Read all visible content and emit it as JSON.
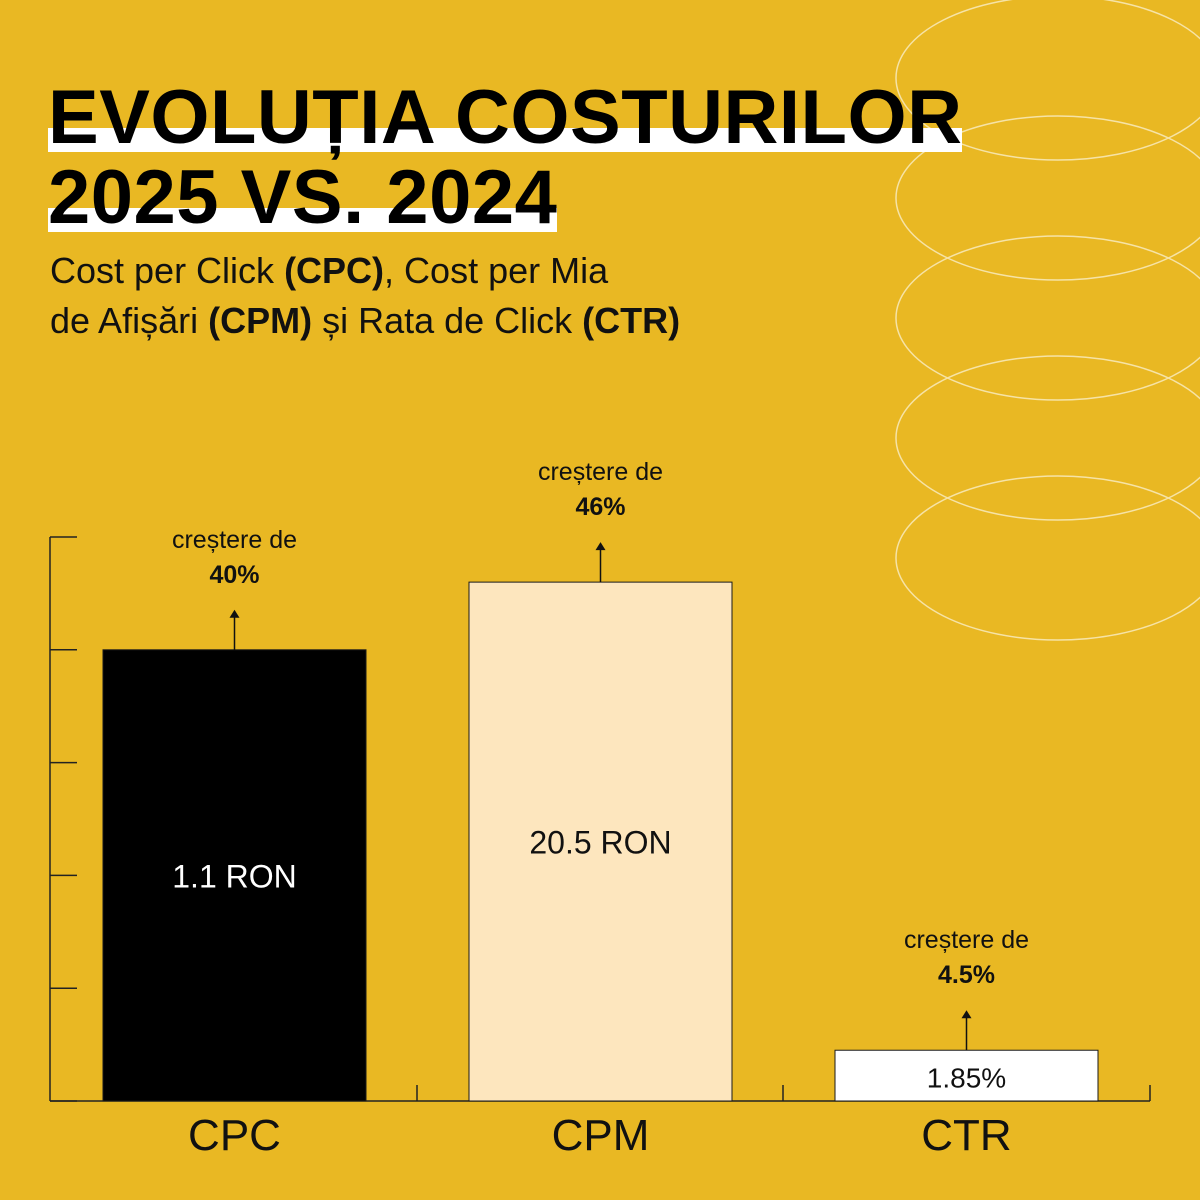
{
  "title": {
    "line1": "EVOLUȚIA COSTURILOR",
    "line2": "2025 VS. 2024"
  },
  "subtitle": {
    "part1": "Cost per Click ",
    "part1_bold": "(CPC)",
    "part2": ", Cost per Mia",
    "part3": "de Afișări ",
    "part3_bold": "(CPM)",
    "part4": " și Rata de Click ",
    "part4_bold": "(CTR)"
  },
  "colors": {
    "background": "#E9B823",
    "cpc_bar": "#000000",
    "cpm_bar": "#FDE6BE",
    "ctr_bar": "#FFFFFF",
    "rings": "#F6E3A6"
  },
  "chart_data": {
    "type": "bar",
    "categories": [
      "CPC",
      "CPM",
      "CTR"
    ],
    "bar_levels": [
      0.8,
      0.92,
      0.09
    ],
    "value_labels": [
      "1.1 RON",
      "20.5 RON",
      "1.85%"
    ],
    "increase_text": [
      "creștere de",
      "creștere de",
      "creștere de"
    ],
    "increase_values": [
      "40%",
      "46%",
      "4.5%"
    ],
    "grid": false,
    "legend": "none"
  }
}
